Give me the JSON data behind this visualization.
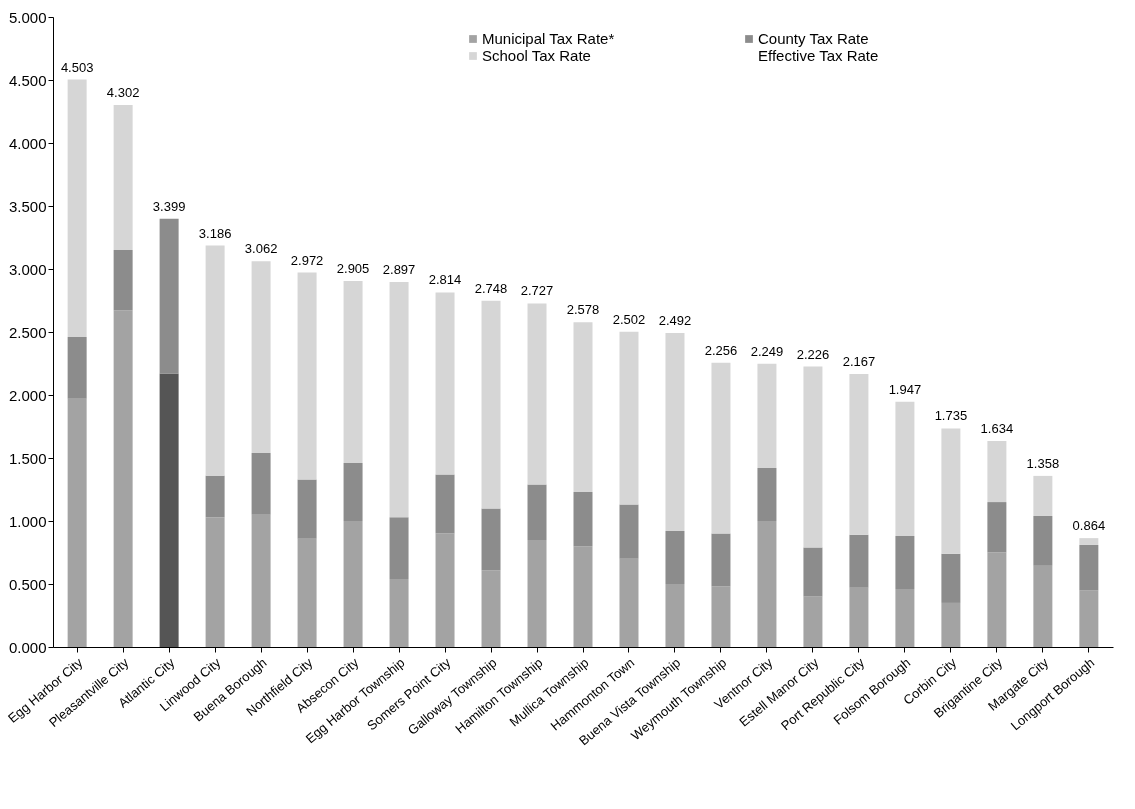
{
  "chart_data": {
    "type": "bar",
    "stacked": true,
    "categories": [
      "Egg Harbor City",
      "Pleasantville City",
      "Atlantic City",
      "Linwood City",
      "Buena Borough",
      "Northfield City",
      "Absecon City",
      "Egg Harbor Township",
      "Somers Point City",
      "Galloway Township",
      "Hamilton Township",
      "Mullica Township",
      "Hammonton Town",
      "Buena Vista Township",
      "Weymouth Township",
      "Ventnor City",
      "Estell Manor City",
      "Port Republic City",
      "Folsom Borough",
      "Corbin City",
      "Brigantine City",
      "Margate City",
      "Longport Borough"
    ],
    "series": [
      {
        "name": "Municipal Tax Rate*",
        "color": "#a3a3a3",
        "colors": [
          "#a3a3a3",
          "#a3a3a3",
          "#555555",
          "#a3a3a3",
          "#a3a3a3",
          "#a3a3a3",
          "#a3a3a3",
          "#a3a3a3",
          "#a3a3a3",
          "#a3a3a3",
          "#a3a3a3",
          "#a3a3a3",
          "#a3a3a3",
          "#a3a3a3",
          "#a3a3a3",
          "#a3a3a3",
          "#a3a3a3",
          "#a3a3a3",
          "#a3a3a3",
          "#a3a3a3",
          "#a3a3a3",
          "#a3a3a3",
          "#a3a3a3"
        ],
        "values": [
          1.97,
          2.67,
          2.17,
          1.03,
          1.05,
          0.86,
          1.0,
          0.54,
          0.9,
          0.61,
          0.85,
          0.8,
          0.7,
          0.5,
          0.48,
          1.0,
          0.4,
          0.47,
          0.46,
          0.35,
          0.75,
          0.65,
          0.45
        ]
      },
      {
        "name": "County Tax Rate",
        "color": "#8c8c8c",
        "values": [
          0.49,
          0.48,
          1.229,
          0.33,
          0.49,
          0.47,
          0.46,
          0.49,
          0.47,
          0.49,
          0.44,
          0.43,
          0.43,
          0.42,
          0.42,
          0.42,
          0.39,
          0.42,
          0.42,
          0.39,
          0.4,
          0.39,
          0.36
        ]
      },
      {
        "name": "School Tax Rate",
        "color": "#d6d6d6",
        "values": [
          2.043,
          1.152,
          0,
          1.826,
          1.522,
          1.642,
          1.445,
          1.867,
          1.444,
          1.648,
          1.437,
          1.348,
          1.372,
          1.572,
          1.356,
          0.829,
          1.436,
          1.277,
          1.067,
          0.995,
          0.484,
          0.318,
          0.054
        ]
      }
    ],
    "totals": [
      "4.503",
      "4.302",
      "3.399",
      "3.186",
      "3.062",
      "2.972",
      "2.905",
      "2.897",
      "2.814",
      "2.748",
      "2.727",
      "2.578",
      "2.502",
      "2.492",
      "2.256",
      "2.249",
      "2.226",
      "2.167",
      "1.947",
      "1.735",
      "1.634",
      "1.358",
      "0.864"
    ],
    "annotations": [
      "Effective Tax Rate"
    ],
    "ylim": [
      0,
      5
    ],
    "yticks": [
      {
        "value": 0,
        "label": "0.000"
      },
      {
        "value": 0.5,
        "label": "0.500"
      },
      {
        "value": 1,
        "label": "1.000"
      },
      {
        "value": 1.5,
        "label": "1.500"
      },
      {
        "value": 2,
        "label": "2.000"
      },
      {
        "value": 2.5,
        "label": "2.500"
      },
      {
        "value": 3,
        "label": "3.000"
      },
      {
        "value": 3.5,
        "label": "3.500"
      },
      {
        "value": 4,
        "label": "4.000"
      },
      {
        "value": 4.5,
        "label": "4.500"
      },
      {
        "value": 5,
        "label": "5.000"
      }
    ],
    "grid": false,
    "legend": "top right"
  }
}
